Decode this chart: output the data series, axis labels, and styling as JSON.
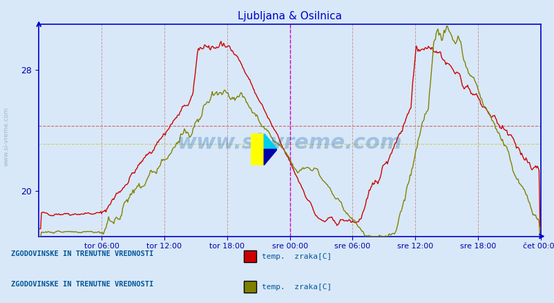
{
  "title": "Ljubljana & Osilnica",
  "title_color": "#0000cc",
  "bg_color": "#d8e8f8",
  "plot_bg_color": "#d8e8f8",
  "x_labels": [
    "tor 06:00",
    "tor 12:00",
    "tor 18:00",
    "sre 00:00",
    "sre 06:00",
    "sre 12:00",
    "sre 18:00",
    "čet 00:00"
  ],
  "x_ticks": [
    72,
    144,
    216,
    288,
    360,
    432,
    504,
    576
  ],
  "total_points": 577,
  "ylim": [
    17,
    31
  ],
  "yticks": [
    20,
    28
  ],
  "ylabel_color": "#0000aa",
  "grid_color_v": "#cc9999",
  "grid_color_h_red": "#cc6666",
  "grid_color_h_yellow": "#cccc66",
  "axis_color": "#0000cc",
  "watermark": "www.si-vreme.com",
  "watermark_color": "#0050a0",
  "watermark_alpha": 0.25,
  "legend1_label": "ZGODOVINSKE IN TRENUTNE VREDNOSTI",
  "legend1_series": "temp.  zraka[C]",
  "legend1_color": "#cc0000",
  "legend2_label": "ZGODOVINSKE IN TRENUTNE VREDNOSTI",
  "legend2_series": "temp.  zraka[C]",
  "legend2_color": "#808000",
  "red_hline": 24.3,
  "yellow_hline": 23.1,
  "vline_sre": 288,
  "vline_cet": 576,
  "vline_color": "#cc00cc"
}
